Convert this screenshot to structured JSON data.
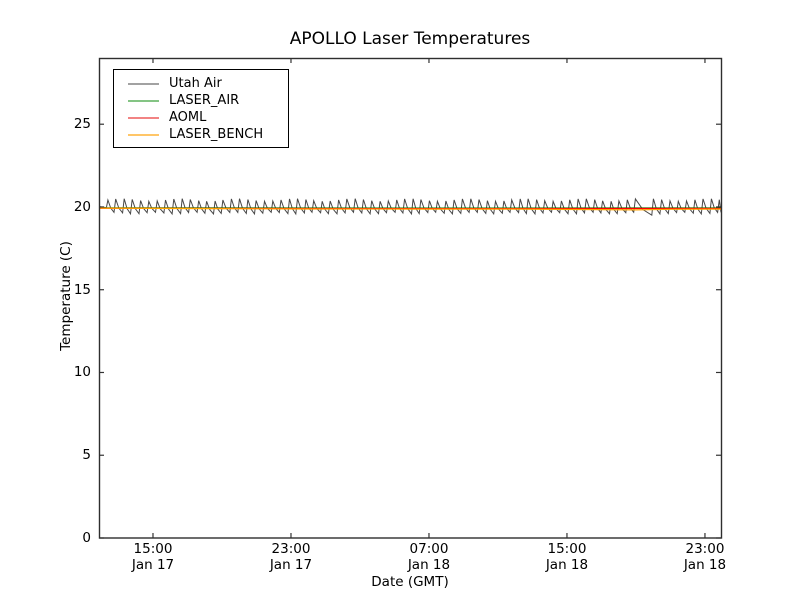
{
  "chart_data": {
    "type": "line",
    "title": "APOLLO Laser Temperatures",
    "xlabel": "Date (GMT)",
    "ylabel": "Temperature (C)",
    "grid": false,
    "legend_position": "upper left",
    "ylim": [
      0,
      29
    ],
    "y_ticks": [
      0,
      5,
      10,
      15,
      20,
      25
    ],
    "x_axis_hours_origin": "Jan 17 12:00 GMT",
    "xlim_hours": [
      -0.13,
      35.93
    ],
    "x_ticks": [
      {
        "hour": 3,
        "time": "15:00",
        "date": "Jan 17"
      },
      {
        "hour": 11,
        "time": "23:00",
        "date": "Jan 17"
      },
      {
        "hour": 19,
        "time": "07:00",
        "date": "Jan 18"
      },
      {
        "hour": 27,
        "time": "15:00",
        "date": "Jan 18"
      },
      {
        "hour": 35,
        "time": "23:00",
        "date": "Jan 18"
      }
    ],
    "series": [
      {
        "name": "Utah Air",
        "color": "#474747",
        "legend_color": "#a2a2a2",
        "pattern": "sawtooth",
        "mean": 20.0,
        "peak": 20.42,
        "trough": 19.63,
        "period_hours": 0.47,
        "long_tooth_index": 64,
        "start_value": 20.02
      },
      {
        "name": "LASER_AIR",
        "color": "#008000",
        "legend_color": "#84c484",
        "points": [
          [
            -0.13,
            19.95
          ],
          [
            18,
            19.93
          ],
          [
            35.93,
            19.94
          ]
        ]
      },
      {
        "name": "AOML",
        "color": "#ff0000",
        "legend_color": "#f28383",
        "points": [
          [
            -0.13,
            19.92
          ],
          [
            18,
            19.9
          ],
          [
            35.93,
            19.91
          ]
        ]
      },
      {
        "name": "LASER_BENCH",
        "color": "#ffa500",
        "legend_color": "#ffc668",
        "points": [
          [
            -0.13,
            19.93
          ],
          [
            6,
            19.9
          ],
          [
            12,
            19.88
          ],
          [
            18,
            19.87
          ],
          [
            24,
            19.87
          ],
          [
            29,
            19.84
          ],
          [
            31,
            19.82
          ],
          [
            33,
            19.86
          ],
          [
            35.93,
            19.87
          ]
        ]
      }
    ]
  }
}
